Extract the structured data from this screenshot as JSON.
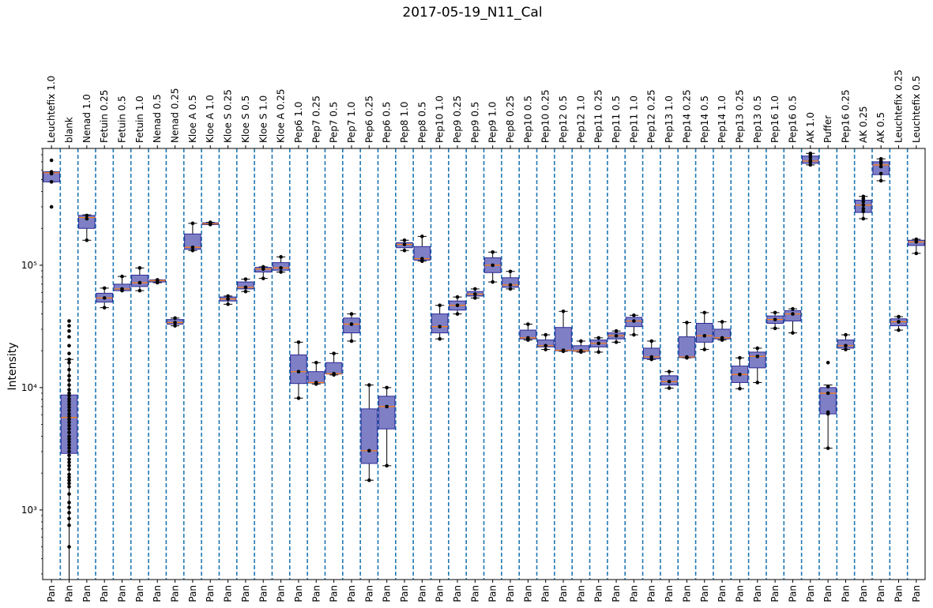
{
  "chart_data": {
    "type": "box",
    "title": "2017-05-19_N11_Cal",
    "ylabel": "Intensity",
    "yscale": "log",
    "ylim": [
      270,
      900000
    ],
    "yticks": [
      1000,
      10000,
      100000
    ],
    "ytick_labels": [
      "10³",
      "10⁴",
      "10⁵"
    ],
    "bottom_tick_label": "Pan",
    "colors": {
      "box_fill": "#7f7fc6",
      "box_edge": "#2b2b96",
      "median": "#ff7f0e",
      "separator": "#1f77b4",
      "point": "#000000"
    },
    "categories": [
      "Leuchtefix 1.0",
      "blank",
      "Nenad 1.0",
      "Fetuin 0.25",
      "Fetuin 0.5",
      "Fetuin 1.0",
      "Nenad 0.5",
      "Nenad 0.25",
      "Kloe A 0.5",
      "Kloe A 1.0",
      "Kloe S 0.25",
      "Kloe S 0.5",
      "Kloe S 1.0",
      "Kloe A 0.25",
      "Pep6 1.0",
      "Pep7 0.25",
      "Pep7 0.5",
      "Pep7 1.0",
      "Pep6 0.25",
      "Pep6 0.5",
      "Pep8 1.0",
      "Pep8 0.5",
      "Pep10 1.0",
      "Pep9 0.25",
      "Pep9 0.5",
      "Pep9 1.0",
      "Pep8 0.25",
      "Pep10 0.5",
      "Pep10 0.25",
      "Pep12 0.5",
      "Pep12 1.0",
      "Pep11 0.25",
      "Pep11 0.5",
      "Pep11 1.0",
      "Pep12 0.25",
      "Pep13 1.0",
      "Pep14 0.25",
      "Pep14 0.5",
      "Pep14 1.0",
      "Pep13 0.25",
      "Pep13 0.5",
      "Pep16 1.0",
      "Pep16 0.5",
      "AK 1.0",
      "Puffer",
      "Pep16 0.25",
      "AK 0.25",
      "AK 0.5",
      "Leuchtefix 0.25",
      "Leuchtefix 0.5"
    ],
    "boxes": [
      {
        "wlo": 480000,
        "q1": 480000,
        "med": 570000,
        "q3": 580000,
        "whi": 580000,
        "points": [
          300000,
          480000,
          560000,
          580000,
          720000
        ]
      },
      {
        "wlo": 270,
        "q1": 2900,
        "med": 5700,
        "q3": 8700,
        "whi": 17000,
        "points": [
          500,
          750,
          850,
          950,
          1050,
          1150,
          1350,
          1550,
          1650,
          1750,
          1850,
          1950,
          2150,
          2300,
          2450,
          2600,
          2800,
          3000,
          3200,
          3400,
          3600,
          3800,
          4000,
          4300,
          4600,
          4900,
          5200,
          5500,
          5800,
          6100,
          6500,
          6900,
          7300,
          7700,
          8100,
          8600,
          9000,
          9600,
          10500,
          11500,
          12500,
          14000,
          16000,
          17000,
          19000,
          22000,
          26000,
          29000,
          32000,
          35000
        ]
      },
      {
        "wlo": 160000,
        "q1": 200000,
        "med": 245000,
        "q3": 255000,
        "whi": 258000,
        "points": [
          160000,
          240000,
          255000
        ]
      },
      {
        "wlo": 45000,
        "q1": 50000,
        "med": 54000,
        "q3": 59000,
        "whi": 65000,
        "points": [
          45000,
          54000,
          65000
        ]
      },
      {
        "wlo": 62000,
        "q1": 62000,
        "med": 64000,
        "q3": 70000,
        "whi": 81000,
        "points": [
          62000,
          64000,
          81000
        ]
      },
      {
        "wlo": 62000,
        "q1": 67000,
        "med": 72000,
        "q3": 83000,
        "whi": 95000,
        "points": [
          62000,
          72000,
          95000
        ]
      },
      {
        "wlo": 72000,
        "q1": 73000,
        "med": 75000,
        "q3": 76000,
        "whi": 76000,
        "points": [
          72000,
          75000,
          76000
        ]
      },
      {
        "wlo": 32000,
        "q1": 33000,
        "med": 34000,
        "q3": 36000,
        "whi": 37000,
        "points": [
          32000,
          34000,
          37000
        ]
      },
      {
        "wlo": 132000,
        "q1": 135000,
        "med": 140000,
        "q3": 180000,
        "whi": 220000,
        "points": [
          132000,
          140000,
          220000
        ]
      },
      {
        "wlo": 215000,
        "q1": 215000,
        "med": 218000,
        "q3": 222000,
        "whi": 224000,
        "points": [
          215000,
          218000,
          224000
        ]
      },
      {
        "wlo": 48000,
        "q1": 51000,
        "med": 53000,
        "q3": 55000,
        "whi": 56000,
        "points": [
          48000,
          53000,
          56000
        ]
      },
      {
        "wlo": 61000,
        "q1": 64000,
        "med": 66000,
        "q3": 73000,
        "whi": 77000,
        "points": [
          61000,
          66000,
          77000
        ]
      },
      {
        "wlo": 78000,
        "q1": 88000,
        "med": 93000,
        "q3": 96000,
        "whi": 97000,
        "points": [
          78000,
          93000,
          97000
        ]
      },
      {
        "wlo": 88000,
        "q1": 91000,
        "med": 95000,
        "q3": 105000,
        "whi": 117000,
        "points": [
          88000,
          95000,
          117000
        ]
      },
      {
        "wlo": 8200,
        "q1": 10800,
        "med": 13500,
        "q3": 18500,
        "whi": 23500,
        "points": [
          8200,
          13500,
          23500
        ]
      },
      {
        "wlo": 10700,
        "q1": 10900,
        "med": 11000,
        "q3": 13500,
        "whi": 16000,
        "points": [
          10700,
          11000,
          16000
        ]
      },
      {
        "wlo": 12700,
        "q1": 12900,
        "med": 13000,
        "q3": 16000,
        "whi": 19000,
        "points": [
          12700,
          13000,
          19000
        ]
      },
      {
        "wlo": 24000,
        "q1": 28000,
        "med": 33000,
        "q3": 37000,
        "whi": 40000,
        "points": [
          24000,
          33000,
          40000
        ]
      },
      {
        "wlo": 1750,
        "q1": 2400,
        "med": 3050,
        "q3": 6700,
        "whi": 10500,
        "points": [
          1750,
          3050,
          10500
        ]
      },
      {
        "wlo": 2300,
        "q1": 4600,
        "med": 7000,
        "q3": 8500,
        "whi": 10000,
        "points": [
          2300,
          7000,
          10000
        ]
      },
      {
        "wlo": 132000,
        "q1": 139000,
        "med": 148000,
        "q3": 153000,
        "whi": 160000,
        "points": [
          132000,
          148000,
          160000
        ]
      },
      {
        "wlo": 108000,
        "q1": 110000,
        "med": 113000,
        "q3": 142000,
        "whi": 172000,
        "points": [
          108000,
          113000,
          172000
        ]
      },
      {
        "wlo": 25000,
        "q1": 28000,
        "med": 31500,
        "q3": 40000,
        "whi": 47000,
        "points": [
          25000,
          31500,
          47000
        ]
      },
      {
        "wlo": 40000,
        "q1": 43000,
        "med": 47000,
        "q3": 51000,
        "whi": 55000,
        "points": [
          40000,
          47000,
          55000
        ]
      },
      {
        "wlo": 54000,
        "q1": 56000,
        "med": 58000,
        "q3": 61000,
        "whi": 64000,
        "points": [
          54000,
          58000,
          64000
        ]
      },
      {
        "wlo": 73000,
        "q1": 87000,
        "med": 100000,
        "q3": 115000,
        "whi": 128000,
        "points": [
          73000,
          100000,
          128000
        ]
      },
      {
        "wlo": 64000,
        "q1": 66000,
        "med": 69000,
        "q3": 79000,
        "whi": 89000,
        "points": [
          64000,
          69000,
          89000
        ]
      },
      {
        "wlo": 24500,
        "q1": 25000,
        "med": 25500,
        "q3": 29500,
        "whi": 33000,
        "points": [
          24500,
          25500,
          33000
        ]
      },
      {
        "wlo": 20500,
        "q1": 21500,
        "med": 22000,
        "q3": 24500,
        "whi": 27000,
        "points": [
          20500,
          22000,
          27000
        ]
      },
      {
        "wlo": 19800,
        "q1": 20000,
        "med": 20200,
        "q3": 31000,
        "whi": 42000,
        "points": [
          19800,
          20200,
          42000
        ]
      },
      {
        "wlo": 19500,
        "q1": 19800,
        "med": 20000,
        "q3": 22000,
        "whi": 24000,
        "points": [
          19500,
          20000,
          24000
        ]
      },
      {
        "wlo": 19500,
        "q1": 21500,
        "med": 23000,
        "q3": 24500,
        "whi": 25500,
        "points": [
          19500,
          23000,
          25500
        ]
      },
      {
        "wlo": 23500,
        "q1": 25000,
        "med": 26500,
        "q3": 28000,
        "whi": 29000,
        "points": [
          23500,
          26500,
          29000
        ]
      },
      {
        "wlo": 27000,
        "q1": 31500,
        "med": 35000,
        "q3": 37500,
        "whi": 39000,
        "points": [
          27000,
          35000,
          39000
        ]
      },
      {
        "wlo": 17000,
        "q1": 17200,
        "med": 17800,
        "q3": 21000,
        "whi": 24000,
        "points": [
          17000,
          17800,
          24000
        ]
      },
      {
        "wlo": 9900,
        "q1": 10500,
        "med": 11200,
        "q3": 12500,
        "whi": 13500,
        "points": [
          9900,
          11200,
          13500
        ]
      },
      {
        "wlo": 17500,
        "q1": 17600,
        "med": 17800,
        "q3": 26000,
        "whi": 34000,
        "points": [
          17500,
          17800,
          34000
        ]
      },
      {
        "wlo": 20500,
        "q1": 23500,
        "med": 26500,
        "q3": 33500,
        "whi": 41000,
        "points": [
          20500,
          26500,
          41000
        ]
      },
      {
        "wlo": 24500,
        "q1": 25000,
        "med": 25500,
        "q3": 30000,
        "whi": 34500,
        "points": [
          24500,
          25500,
          34500
        ]
      },
      {
        "wlo": 9800,
        "q1": 11000,
        "med": 12800,
        "q3": 15000,
        "whi": 17500,
        "points": [
          9800,
          12800,
          17500
        ]
      },
      {
        "wlo": 11000,
        "q1": 14500,
        "med": 18000,
        "q3": 19500,
        "whi": 21000,
        "points": [
          11000,
          18000,
          21000
        ]
      },
      {
        "wlo": 30500,
        "q1": 33500,
        "med": 36000,
        "q3": 38500,
        "whi": 41000,
        "points": [
          30500,
          36000,
          41000
        ]
      },
      {
        "wlo": 28000,
        "q1": 35000,
        "med": 40000,
        "q3": 42500,
        "whi": 44000,
        "points": [
          28000,
          40000,
          44000
        ]
      },
      {
        "wlo": 660000,
        "q1": 680000,
        "med": 710000,
        "q3": 780000,
        "whi": 820000,
        "points": [
          660000,
          700000,
          720000,
          760000,
          800000,
          820000
        ]
      },
      {
        "wlo": 3200,
        "q1": 6100,
        "med": 9000,
        "q3": 10000,
        "whi": 10500,
        "points": [
          3200,
          6100,
          6300,
          9000,
          10200,
          16000
        ]
      },
      {
        "wlo": 20500,
        "q1": 21000,
        "med": 22000,
        "q3": 24500,
        "whi": 27000,
        "points": [
          20500,
          22000,
          27000
        ]
      },
      {
        "wlo": 240000,
        "q1": 270000,
        "med": 310000,
        "q3": 340000,
        "whi": 365000,
        "points": [
          240000,
          275000,
          290000,
          310000,
          330000,
          350000,
          365000
        ]
      },
      {
        "wlo": 490000,
        "q1": 550000,
        "med": 660000,
        "q3": 700000,
        "whi": 740000,
        "points": [
          490000,
          560000,
          640000,
          680000,
          710000,
          740000
        ]
      },
      {
        "wlo": 29500,
        "q1": 32000,
        "med": 34500,
        "q3": 36500,
        "whi": 38000,
        "points": [
          29500,
          34500,
          38000
        ]
      },
      {
        "wlo": 125000,
        "q1": 145000,
        "med": 155000,
        "q3": 160000,
        "whi": 163000,
        "points": [
          125000,
          155000,
          163000
        ]
      }
    ]
  }
}
